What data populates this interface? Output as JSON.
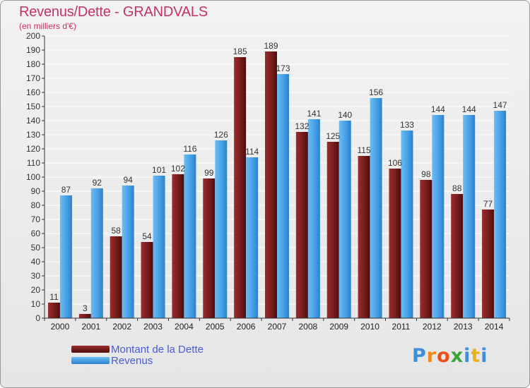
{
  "chart_data": {
    "type": "bar",
    "title": "Revenus/Dette - GRANDVALS",
    "subtitle": "(en milliers d'€)",
    "categories": [
      "2000",
      "2001",
      "2002",
      "2003",
      "2004",
      "2005",
      "2006",
      "2007",
      "2008",
      "2009",
      "2010",
      "2011",
      "2012",
      "2013",
      "2014"
    ],
    "series": [
      {
        "name": "Montant de la Dette",
        "color": "#7a1e1e",
        "values": [
          11,
          3,
          58,
          54,
          102,
          99,
          185,
          189,
          132,
          125,
          115,
          106,
          98,
          88,
          77
        ]
      },
      {
        "name": "Revenus",
        "color": "#4aa3e8",
        "values": [
          87,
          92,
          94,
          101,
          116,
          126,
          114,
          173,
          141,
          140,
          156,
          133,
          144,
          144,
          147
        ]
      }
    ],
    "ylim": [
      0,
      200
    ],
    "ytick_step": 10,
    "grid": true,
    "legend_position": "bottom-left"
  },
  "logo": {
    "text": "Proxiti"
  }
}
